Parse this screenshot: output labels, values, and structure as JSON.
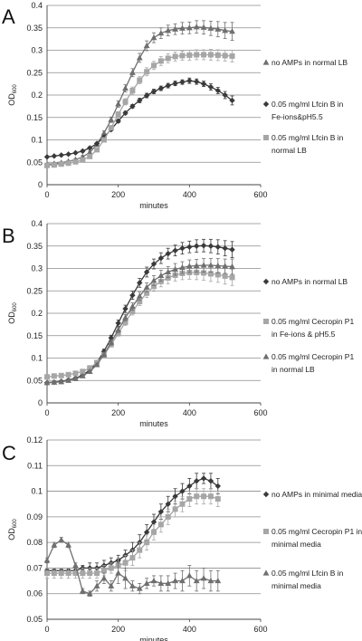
{
  "colors": {
    "dark_gray": "#3a3a3a",
    "mid_gray": "#6f6f6f",
    "light_gray": "#a6a6a6",
    "grid": "#8c8c8c"
  },
  "chart_data": [
    {
      "panel": "A",
      "type": "line",
      "xlabel": "minutes",
      "ylabel": "OD600",
      "ylabel_main": "OD",
      "ylabel_sub": "600",
      "xlim": [
        0,
        600
      ],
      "ylim": [
        0,
        0.4
      ],
      "xticks": [
        0,
        200,
        400,
        600
      ],
      "yticks": [
        0,
        0.05,
        0.1,
        0.15,
        0.2,
        0.25,
        0.3,
        0.35,
        0.4
      ],
      "xtick_labels": [
        "0",
        "200",
        "400",
        "600"
      ],
      "ytick_labels": [
        "0",
        "0.05",
        "0.1",
        "0.15",
        "0.2",
        "0.25",
        "0.3",
        "0.35",
        "0.4"
      ],
      "grid": "horizontal",
      "legend_position": "right",
      "x": [
        0,
        20,
        40,
        60,
        80,
        100,
        120,
        140,
        160,
        180,
        200,
        220,
        240,
        260,
        280,
        300,
        320,
        340,
        360,
        380,
        400,
        420,
        440,
        460,
        480,
        500,
        520
      ],
      "series": [
        {
          "name_lines": [
            "no AMPs in normal LB"
          ],
          "marker": "triangle",
          "color": "mid_gray",
          "values": [
            0.045,
            0.047,
            0.049,
            0.052,
            0.056,
            0.062,
            0.072,
            0.09,
            0.115,
            0.145,
            0.18,
            0.215,
            0.25,
            0.283,
            0.31,
            0.328,
            0.338,
            0.344,
            0.347,
            0.349,
            0.35,
            0.352,
            0.351,
            0.349,
            0.347,
            0.344,
            0.342
          ],
          "errors": [
            0.002,
            0.002,
            0.002,
            0.002,
            0.002,
            0.003,
            0.003,
            0.004,
            0.005,
            0.006,
            0.007,
            0.008,
            0.009,
            0.01,
            0.011,
            0.011,
            0.012,
            0.012,
            0.012,
            0.013,
            0.013,
            0.014,
            0.015,
            0.016,
            0.017,
            0.018,
            0.02
          ]
        },
        {
          "name_lines": [
            "0.05 mg/ml Lfcin B in",
            "Fe-ions&pH5.5"
          ],
          "marker": "diamond",
          "color": "dark_gray",
          "values": [
            0.062,
            0.064,
            0.066,
            0.068,
            0.071,
            0.075,
            0.082,
            0.092,
            0.106,
            0.123,
            0.142,
            0.16,
            0.175,
            0.188,
            0.199,
            0.208,
            0.215,
            0.221,
            0.226,
            0.229,
            0.232,
            0.23,
            0.225,
            0.218,
            0.21,
            0.2,
            0.188
          ],
          "errors": [
            0.001,
            0.001,
            0.001,
            0.001,
            0.001,
            0.002,
            0.002,
            0.002,
            0.003,
            0.003,
            0.004,
            0.004,
            0.004,
            0.005,
            0.005,
            0.005,
            0.005,
            0.005,
            0.005,
            0.005,
            0.006,
            0.006,
            0.006,
            0.007,
            0.007,
            0.008,
            0.01
          ]
        },
        {
          "name_lines": [
            "0.05 mg/ml Lfcin B in",
            "normal LB"
          ],
          "marker": "square",
          "color": "light_gray",
          "values": [
            0.043,
            0.044,
            0.046,
            0.048,
            0.051,
            0.055,
            0.063,
            0.078,
            0.1,
            0.127,
            0.157,
            0.185,
            0.21,
            0.233,
            0.252,
            0.266,
            0.276,
            0.282,
            0.286,
            0.288,
            0.289,
            0.29,
            0.29,
            0.29,
            0.289,
            0.288,
            0.287
          ],
          "errors": [
            0.002,
            0.002,
            0.002,
            0.002,
            0.002,
            0.002,
            0.003,
            0.003,
            0.004,
            0.005,
            0.006,
            0.007,
            0.008,
            0.008,
            0.009,
            0.009,
            0.01,
            0.01,
            0.01,
            0.01,
            0.011,
            0.011,
            0.011,
            0.012,
            0.012,
            0.012,
            0.013
          ]
        }
      ]
    },
    {
      "panel": "B",
      "type": "line",
      "xlabel": "minutes",
      "ylabel": "OD600",
      "ylabel_main": "OD",
      "ylabel_sub": "600",
      "xlim": [
        0,
        600
      ],
      "ylim": [
        0,
        0.4
      ],
      "xticks": [
        0,
        200,
        400,
        600
      ],
      "yticks": [
        0,
        0.05,
        0.1,
        0.15,
        0.2,
        0.25,
        0.3,
        0.35,
        0.4
      ],
      "xtick_labels": [
        "0",
        "200",
        "400",
        "600"
      ],
      "ytick_labels": [
        "0",
        "0.05",
        "0.1",
        "0.15",
        "0.2",
        "0.25",
        "0.3",
        "0.35",
        "0.4"
      ],
      "grid": "horizontal",
      "legend_position": "right",
      "x": [
        0,
        20,
        40,
        60,
        80,
        100,
        120,
        140,
        160,
        180,
        200,
        220,
        240,
        260,
        280,
        300,
        320,
        340,
        360,
        380,
        400,
        420,
        440,
        460,
        480,
        500,
        520
      ],
      "series": [
        {
          "name_lines": [
            "no AMPs in normal LB"
          ],
          "marker": "diamond",
          "color": "dark_gray",
          "values": [
            0.045,
            0.046,
            0.048,
            0.051,
            0.055,
            0.062,
            0.073,
            0.09,
            0.115,
            0.145,
            0.178,
            0.21,
            0.24,
            0.268,
            0.292,
            0.31,
            0.323,
            0.333,
            0.34,
            0.345,
            0.348,
            0.35,
            0.351,
            0.35,
            0.348,
            0.345,
            0.342
          ],
          "errors": [
            0.002,
            0.002,
            0.002,
            0.002,
            0.002,
            0.003,
            0.003,
            0.004,
            0.005,
            0.006,
            0.007,
            0.008,
            0.009,
            0.01,
            0.011,
            0.011,
            0.012,
            0.012,
            0.012,
            0.013,
            0.013,
            0.014,
            0.014,
            0.015,
            0.016,
            0.017,
            0.018
          ]
        },
        {
          "name_lines": [
            "0.05 mg/ml Cecropin P1",
            "in Fe-ions & pH5.5"
          ],
          "marker": "square",
          "color": "light_gray",
          "values": [
            0.058,
            0.06,
            0.061,
            0.063,
            0.066,
            0.07,
            0.078,
            0.09,
            0.107,
            0.13,
            0.155,
            0.18,
            0.204,
            0.226,
            0.245,
            0.26,
            0.271,
            0.279,
            0.285,
            0.289,
            0.291,
            0.291,
            0.29,
            0.288,
            0.286,
            0.283,
            0.28
          ],
          "errors": [
            0.002,
            0.002,
            0.002,
            0.002,
            0.002,
            0.002,
            0.003,
            0.003,
            0.004,
            0.005,
            0.006,
            0.007,
            0.008,
            0.009,
            0.01,
            0.011,
            0.012,
            0.013,
            0.013,
            0.014,
            0.015,
            0.016,
            0.016,
            0.017,
            0.017,
            0.018,
            0.018
          ]
        },
        {
          "name_lines": [
            "0.05 mg/ml Cecropin P1",
            "in normal LB"
          ],
          "marker": "triangle",
          "color": "mid_gray",
          "values": [
            0.045,
            0.046,
            0.047,
            0.05,
            0.054,
            0.06,
            0.07,
            0.085,
            0.108,
            0.135,
            0.163,
            0.19,
            0.215,
            0.238,
            0.258,
            0.273,
            0.284,
            0.292,
            0.298,
            0.302,
            0.305,
            0.306,
            0.307,
            0.307,
            0.306,
            0.305,
            0.304
          ],
          "errors": [
            0.002,
            0.002,
            0.002,
            0.002,
            0.002,
            0.003,
            0.003,
            0.004,
            0.005,
            0.006,
            0.006,
            0.007,
            0.008,
            0.009,
            0.01,
            0.011,
            0.012,
            0.012,
            0.013,
            0.013,
            0.014,
            0.014,
            0.015,
            0.015,
            0.016,
            0.016,
            0.017
          ]
        }
      ]
    },
    {
      "panel": "C",
      "type": "line",
      "xlabel": "minutes",
      "ylabel": "OD600",
      "ylabel_main": "OD",
      "ylabel_sub": "600",
      "xlim": [
        0,
        600
      ],
      "ylim": [
        0.05,
        0.12
      ],
      "xticks": [
        0,
        200,
        400,
        600
      ],
      "yticks": [
        0.05,
        0.06,
        0.07,
        0.08,
        0.09,
        0.1,
        0.11,
        0.12
      ],
      "xtick_labels": [
        "0",
        "200",
        "400",
        "600"
      ],
      "ytick_labels": [
        "0.05",
        "0.06",
        "0.07",
        "0.08",
        "0.09",
        "0.1",
        "0.11",
        "0.12"
      ],
      "grid": "horizontal",
      "legend_position": "right",
      "x": [
        0,
        20,
        40,
        60,
        80,
        100,
        120,
        140,
        160,
        180,
        200,
        220,
        240,
        260,
        280,
        300,
        320,
        340,
        360,
        380,
        400,
        420,
        440,
        460,
        480
      ],
      "series": [
        {
          "name_lines": [
            "no AMPs in minimal media"
          ],
          "marker": "diamond",
          "color": "dark_gray",
          "values": [
            0.069,
            0.069,
            0.069,
            0.069,
            0.069,
            0.07,
            0.07,
            0.07,
            0.071,
            0.072,
            0.073,
            0.075,
            0.077,
            0.08,
            0.084,
            0.088,
            0.092,
            0.095,
            0.098,
            0.1,
            0.102,
            0.104,
            0.105,
            0.104,
            0.102
          ],
          "errors": [
            0.001,
            0.001,
            0.001,
            0.001,
            0.001,
            0.001,
            0.002,
            0.002,
            0.002,
            0.002,
            0.002,
            0.002,
            0.003,
            0.003,
            0.003,
            0.003,
            0.003,
            0.003,
            0.003,
            0.003,
            0.003,
            0.003,
            0.002,
            0.003,
            0.003
          ]
        },
        {
          "name_lines": [
            "0.05 mg/ml Cecropin P1 in",
            "minimal media"
          ],
          "marker": "square",
          "color": "light_gray",
          "values": [
            0.068,
            0.068,
            0.068,
            0.068,
            0.068,
            0.068,
            0.068,
            0.068,
            0.069,
            0.07,
            0.071,
            0.072,
            0.074,
            0.077,
            0.08,
            0.084,
            0.087,
            0.09,
            0.093,
            0.095,
            0.097,
            0.098,
            0.098,
            0.098,
            0.097
          ],
          "errors": [
            0.002,
            0.002,
            0.002,
            0.002,
            0.002,
            0.002,
            0.002,
            0.002,
            0.002,
            0.002,
            0.003,
            0.003,
            0.003,
            0.003,
            0.003,
            0.003,
            0.003,
            0.003,
            0.003,
            0.003,
            0.003,
            0.003,
            0.003,
            0.003,
            0.003
          ]
        },
        {
          "name_lines": [
            "0.05 mg/ml Lfcin B in",
            "minimal media"
          ],
          "marker": "triangle",
          "color": "mid_gray",
          "values": [
            0.073,
            0.079,
            0.081,
            0.079,
            0.071,
            0.061,
            0.06,
            0.063,
            0.066,
            0.063,
            0.068,
            0.066,
            0.063,
            0.062,
            0.064,
            0.065,
            0.064,
            0.064,
            0.065,
            0.065,
            0.067,
            0.065,
            0.066,
            0.065,
            0.065
          ],
          "errors": [
            0.001,
            0.001,
            0.001,
            0.001,
            0.001,
            0.001,
            0.001,
            0.002,
            0.002,
            0.002,
            0.004,
            0.004,
            0.002,
            0.002,
            0.002,
            0.002,
            0.003,
            0.003,
            0.003,
            0.004,
            0.004,
            0.004,
            0.004,
            0.004,
            0.004
          ]
        }
      ]
    }
  ]
}
